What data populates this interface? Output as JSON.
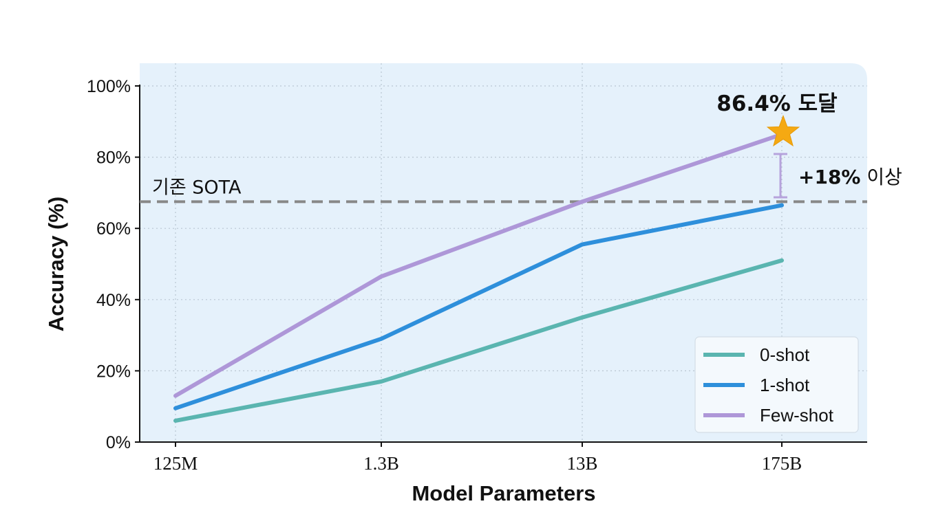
{
  "chart_data": {
    "type": "line",
    "xlabel": "Model Parameters",
    "ylabel": "Accuracy (%)",
    "categories": [
      "125M",
      "1.3B",
      "13B",
      "175B"
    ],
    "ylim": [
      0,
      100
    ],
    "yticks": [
      0,
      20,
      40,
      60,
      80,
      100
    ],
    "ytick_labels": [
      "0%",
      "20%",
      "40%",
      "60%",
      "80%",
      "100%"
    ],
    "grid": true,
    "legend_position": "bottom-right",
    "series": [
      {
        "name": "0-shot",
        "color": "#5ab5b0",
        "values": [
          6,
          17,
          35,
          51
        ]
      },
      {
        "name": "1-shot",
        "color": "#2e8fdb",
        "values": [
          9.5,
          29,
          55.5,
          66.5
        ]
      },
      {
        "name": "Few-shot",
        "color": "#ae97d8",
        "values": [
          13,
          46.5,
          67.5,
          86.4
        ]
      }
    ],
    "reference_line": {
      "label": "기존 SOTA",
      "value": 67.5,
      "color": "#888888"
    },
    "annotations": {
      "peak_label": "86.4% 도달",
      "peak_marker": "star-icon",
      "peak_color": "#f5a912",
      "gain_label_bold": "+18%",
      "gain_label_rest": " 이상"
    }
  }
}
